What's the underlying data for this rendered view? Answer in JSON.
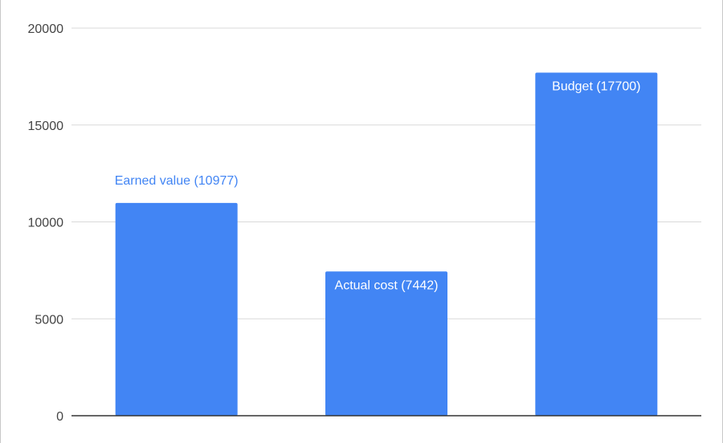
{
  "chart_data": {
    "type": "bar",
    "categories": [
      "Earned value",
      "Actual cost",
      "Budget"
    ],
    "values": [
      10977,
      7442,
      17700
    ],
    "data_labels": [
      "Earned value (10977)",
      "Actual cost (7442)",
      "Budget (17700)"
    ],
    "title": "",
    "xlabel": "",
    "ylabel": "",
    "ylim": [
      0,
      20000
    ],
    "yticks": [
      0,
      5000,
      10000,
      15000,
      20000
    ],
    "ytick_labels": [
      "0",
      "5000",
      "10000",
      "15000",
      "20000"
    ],
    "grid": true,
    "legend": "none",
    "colors": {
      "bar": "#4285f4",
      "grid": "#d9d9d9",
      "baseline": "#333333",
      "label_inside": "#ffffff",
      "label_outside": "#4285f4"
    }
  }
}
